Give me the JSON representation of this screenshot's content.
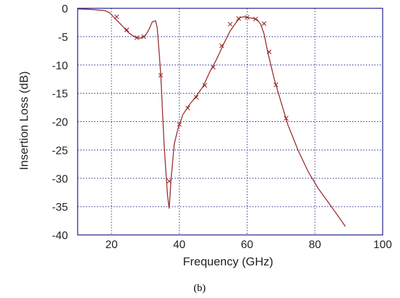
{
  "chart_data": {
    "type": "line",
    "xlabel": "Frequency (GHz)",
    "ylabel": "Insertion Loss (dB)",
    "xlim": [
      10,
      100
    ],
    "ylim": [
      -40,
      0
    ],
    "xticks": [
      20,
      40,
      60,
      80,
      100
    ],
    "yticks": [
      0,
      -5,
      -10,
      -15,
      -20,
      -25,
      -30,
      -35,
      -40
    ],
    "grid": true,
    "colors": {
      "line": "#9a2a2a",
      "marker": "#9a2a2a",
      "grid": "#1a1a8c",
      "frame": "#1a1a8c"
    },
    "series": [
      {
        "x": [
          10,
          14,
          18,
          19.5,
          21,
          23,
          25,
          27,
          28.5,
          30,
          31,
          32,
          33,
          33.5,
          34.5,
          35.5,
          36.5,
          37,
          37.6,
          38.5,
          39.5,
          41,
          43,
          45,
          47,
          49,
          51,
          53,
          55,
          57,
          58,
          59,
          60,
          61,
          62,
          63,
          64,
          65,
          66,
          68,
          70,
          72,
          75,
          78,
          81,
          84,
          87,
          89
        ],
        "y": [
          -0.1,
          -0.2,
          -0.4,
          -0.8,
          -1.8,
          -3.0,
          -4.3,
          -5.1,
          -5.3,
          -4.8,
          -3.8,
          -2.4,
          -2.2,
          -3.5,
          -11.5,
          -24.0,
          -33.0,
          -35.3,
          -30.0,
          -24.0,
          -21.5,
          -18.8,
          -17.0,
          -15.5,
          -13.8,
          -11.2,
          -9.0,
          -6.4,
          -4.0,
          -2.3,
          -1.6,
          -1.5,
          -1.6,
          -1.7,
          -1.8,
          -2.0,
          -2.8,
          -4.5,
          -7.5,
          -12.5,
          -16.5,
          -20.5,
          -25.0,
          -28.8,
          -31.8,
          -34.3,
          -36.8,
          -38.5
        ]
      }
    ],
    "markers": {
      "x": [
        21.5,
        24.5,
        27.5,
        29.5,
        34.5,
        37.0,
        40.0,
        42.5,
        45.0,
        47.5,
        50.0,
        52.5,
        55.0,
        57.5,
        60.0,
        62.5,
        65.0,
        66.5,
        68.5,
        71.5
      ],
      "y": [
        -1.5,
        -3.8,
        -5.2,
        -5.0,
        -11.8,
        -30.5,
        -20.5,
        -17.6,
        -15.7,
        -13.6,
        -10.4,
        -6.6,
        -2.8,
        -1.8,
        -1.6,
        -1.9,
        -2.7,
        -7.7,
        -13.5,
        -19.4
      ]
    },
    "caption": "(b)"
  }
}
